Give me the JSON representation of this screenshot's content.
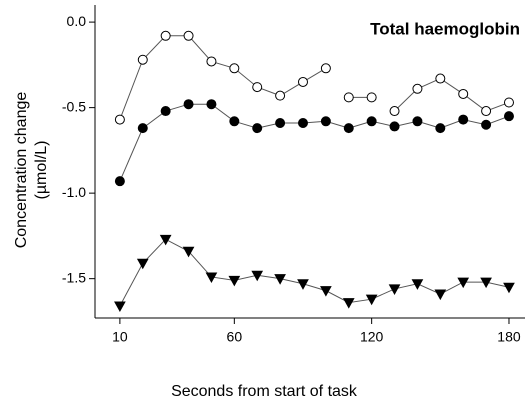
{
  "chart_data": {
    "type": "line",
    "title": "Total haemoglobin",
    "xlabel": "Seconds from start of task",
    "ylabel": [
      "Concentration change",
      "(µmol/L)"
    ],
    "xlim": [
      0,
      187
    ],
    "xticks": [
      10,
      60,
      120,
      180
    ],
    "ylim": [
      -1.73,
      0.1
    ],
    "yticks": [
      {
        "value": 0,
        "label": "0.0"
      },
      -0.5,
      {
        "value": -1,
        "label": "-1.0"
      },
      -1.5
    ],
    "series": [
      {
        "marker": "circle",
        "fill": "#ffffff",
        "x": [
          10,
          20,
          30,
          40,
          50,
          60,
          70,
          80,
          90,
          100
        ],
        "values": [
          -0.57,
          -0.22,
          -0.08,
          -0.08,
          -0.23,
          -0.27,
          -0.38,
          -0.43,
          -0.35,
          -0.27
        ]
      },
      {
        "marker": "circle",
        "fill": "#ffffff",
        "x": [
          110,
          120
        ],
        "values": [
          -0.44,
          -0.44
        ]
      },
      {
        "marker": "circle",
        "fill": "#ffffff",
        "x": [
          130,
          140,
          150,
          160,
          170,
          180
        ],
        "values": [
          -0.52,
          -0.39,
          -0.33,
          -0.42,
          -0.52,
          -0.47
        ]
      },
      {
        "marker": "circle",
        "fill": "#000000",
        "x": [
          10,
          20,
          30,
          40,
          50,
          60,
          70,
          80,
          90,
          100,
          110,
          120,
          130,
          140,
          150,
          160,
          170,
          180
        ],
        "values": [
          -0.93,
          -0.62,
          -0.52,
          -0.48,
          -0.48,
          -0.58,
          -0.62,
          -0.59,
          -0.59,
          -0.58,
          -0.62,
          -0.58,
          -0.61,
          -0.58,
          -0.62,
          -0.57,
          -0.6,
          -0.55
        ]
      },
      {
        "marker": "triangle",
        "fill": "#000000",
        "x": [
          10,
          20,
          30,
          40,
          50,
          60,
          70,
          80,
          90,
          100,
          110,
          120,
          130,
          140,
          150,
          160,
          170,
          180
        ],
        "values": [
          -1.66,
          -1.41,
          -1.27,
          -1.34,
          -1.49,
          -1.51,
          -1.48,
          -1.5,
          -1.53,
          -1.57,
          -1.64,
          -1.62,
          -1.56,
          -1.53,
          -1.59,
          -1.52,
          -1.52,
          -1.55
        ]
      }
    ]
  }
}
